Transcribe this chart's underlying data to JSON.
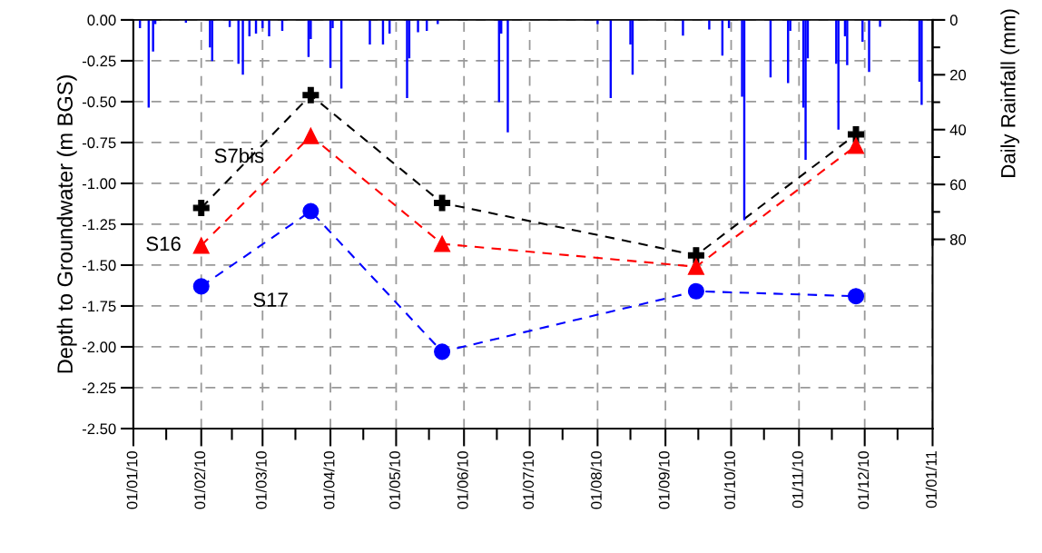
{
  "chart_data": {
    "type": "line",
    "ylabel": "Depth to Groundwater (m BGS)",
    "y2label": "Daily Rainfall (mm)",
    "xlim": [
      "2010-01-01",
      "2011-01-01"
    ],
    "xticks": [
      {
        "value": "2010-01-01",
        "label": "01/01/10"
      },
      {
        "value": "2010-01-16",
        "label": null
      },
      {
        "value": "2010-02-01",
        "label": "01/02/10"
      },
      {
        "value": "2010-02-15",
        "label": null
      },
      {
        "value": "2010-03-01",
        "label": "01/03/10"
      },
      {
        "value": "2010-03-16",
        "label": null
      },
      {
        "value": "2010-04-01",
        "label": "01/04/10"
      },
      {
        "value": "2010-04-16",
        "label": null
      },
      {
        "value": "2010-05-01",
        "label": "01/05/10"
      },
      {
        "value": "2010-05-16",
        "label": null
      },
      {
        "value": "2010-06-01",
        "label": "01/06/10"
      },
      {
        "value": "2010-06-16",
        "label": null
      },
      {
        "value": "2010-07-01",
        "label": "01/07/10"
      },
      {
        "value": "2010-07-16",
        "label": null
      },
      {
        "value": "2010-08-01",
        "label": "01/08/10"
      },
      {
        "value": "2010-08-16",
        "label": null
      },
      {
        "value": "2010-09-01",
        "label": "01/09/10"
      },
      {
        "value": "2010-09-16",
        "label": null
      },
      {
        "value": "2010-10-01",
        "label": "01/10/10"
      },
      {
        "value": "2010-10-16",
        "label": null
      },
      {
        "value": "2010-11-01",
        "label": "01/11/10"
      },
      {
        "value": "2010-11-16",
        "label": null
      },
      {
        "value": "2010-12-01",
        "label": "01/12/10"
      },
      {
        "value": "2010-12-16",
        "label": null
      },
      {
        "value": "2011-01-01",
        "label": "01/01/11"
      }
    ],
    "ylim": [
      -2.5,
      0
    ],
    "yticks": [
      {
        "value": 0,
        "label": "0.00"
      },
      {
        "value": -0.25,
        "label": "-0.25"
      },
      {
        "value": -0.5,
        "label": "-0.50"
      },
      {
        "value": -0.75,
        "label": "-0.75"
      },
      {
        "value": -1.0,
        "label": "-1.00"
      },
      {
        "value": -1.25,
        "label": "-1.25"
      },
      {
        "value": -1.5,
        "label": "-1.50"
      },
      {
        "value": -1.75,
        "label": "-1.75"
      },
      {
        "value": -2.0,
        "label": "-2.00"
      },
      {
        "value": -2.25,
        "label": "-2.25"
      },
      {
        "value": -2.5,
        "label": "-2.50"
      }
    ],
    "y2lim": [
      149,
      0
    ],
    "y2ticks": [
      0,
      {
        "value": 10,
        "label": null
      },
      20,
      {
        "value": 30,
        "label": null
      },
      40,
      {
        "value": 50,
        "label": null
      },
      60,
      {
        "value": 70,
        "label": null
      },
      80
    ],
    "grid": true,
    "line_style": "dashed",
    "series": [
      {
        "type": "bar",
        "axis": "y2",
        "color": "#0000ff",
        "x": [
          "2010-01-04",
          "2010-01-08",
          "2010-01-10",
          "2010-01-11",
          "2010-01-25",
          "2010-02-05",
          "2010-02-06",
          "2010-02-14",
          "2010-02-18",
          "2010-02-20",
          "2010-02-23",
          "2010-02-26",
          "2010-03-01",
          "2010-03-04",
          "2010-03-10",
          "2010-03-22",
          "2010-03-23",
          "2010-04-01",
          "2010-04-02",
          "2010-04-06",
          "2010-04-19",
          "2010-04-25",
          "2010-04-28",
          "2010-05-06",
          "2010-05-07",
          "2010-05-11",
          "2010-05-15",
          "2010-05-20",
          "2010-06-17",
          "2010-06-18",
          "2010-06-21",
          "2010-08-01",
          "2010-08-07",
          "2010-08-16",
          "2010-08-17",
          "2010-09-09",
          "2010-09-21",
          "2010-09-27",
          "2010-09-30",
          "2010-10-06",
          "2010-10-07",
          "2010-10-19",
          "2010-10-27",
          "2010-10-28",
          "2010-11-03",
          "2010-11-04",
          "2010-11-05",
          "2010-11-18",
          "2010-11-19",
          "2010-11-22",
          "2010-11-23",
          "2010-11-30",
          "2010-12-03",
          "2010-12-08",
          "2010-12-26",
          "2010-12-27"
        ],
        "values": [
          3,
          32,
          11.5,
          1.5,
          1,
          10,
          15,
          2.6,
          16,
          20,
          6,
          5,
          3,
          6,
          4,
          13.5,
          7,
          17.5,
          3,
          25,
          9,
          9,
          5,
          28.5,
          14,
          4.5,
          4,
          1.5,
          30,
          5,
          41,
          1.5,
          28.5,
          9,
          20,
          5.7,
          3.5,
          13,
          3,
          28,
          73,
          21,
          23,
          4,
          32,
          51,
          14,
          16,
          40,
          6,
          16.5,
          8,
          19,
          2.5,
          22.5,
          31
        ]
      },
      {
        "name": "S7bis",
        "color": "#000000",
        "marker": "cross",
        "x": [
          "2010-02-01",
          "2010-03-23",
          "2010-05-22",
          "2010-09-15",
          "2010-11-27"
        ],
        "values": [
          -1.15,
          -0.46,
          -1.12,
          -1.44,
          -0.7
        ]
      },
      {
        "name": "S16",
        "color": "#ff0000",
        "marker": "triangle",
        "x": [
          "2010-02-01",
          "2010-03-23",
          "2010-05-22",
          "2010-09-15",
          "2010-11-27"
        ],
        "values": [
          -1.38,
          -0.71,
          -1.37,
          -1.51,
          -0.77
        ]
      },
      {
        "name": "S17",
        "color": "#0000ff",
        "marker": "circle",
        "x": [
          "2010-02-01",
          "2010-03-23",
          "2010-05-22",
          "2010-09-15",
          "2010-11-27"
        ],
        "values": [
          -1.63,
          -1.17,
          -2.03,
          -1.66,
          -1.69
        ]
      }
    ]
  }
}
